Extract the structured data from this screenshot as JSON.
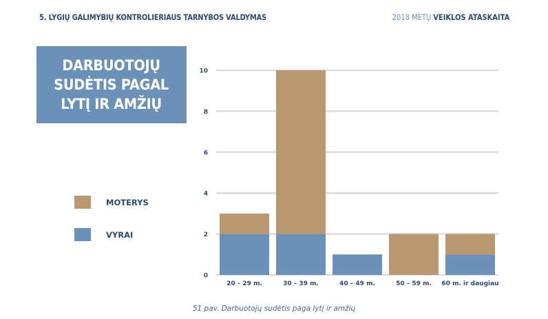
{
  "header": {
    "left": "5. LYGIŲ GALIMYBIŲ KONTROLIERIAUS TARNYBOS VALDYMAS",
    "right_year": "2018 METŲ",
    "right_rest": "VEIKLOS ATASKAITA"
  },
  "caption": "51 pav. Darbuotojų sudėtis paga lytį ir amžių",
  "colors": {
    "moterys": "#b99872",
    "vyrai": "#6c91b8",
    "title_bg": "#6c91b8",
    "grid": "#dcdcdc"
  },
  "chart_data": {
    "type": "bar",
    "stacked": true,
    "title": "DARBUOTOJŲ\nSUDĖTIS PAGAL\nLYTĮ IR AMŽIŲ",
    "categories": [
      "20 – 29 m.",
      "30 – 39 m.",
      "40 – 49 m.",
      "50 – 59 m.",
      "60 m. ir daugiau"
    ],
    "series": [
      {
        "name": "VYRAI",
        "values": [
          2,
          2,
          1,
          0,
          1
        ]
      },
      {
        "name": "MOTERYS",
        "values": [
          1,
          8,
          0,
          2,
          1
        ]
      }
    ],
    "yticks": [
      0,
      2,
      4,
      6,
      8,
      10
    ],
    "ylim": [
      0,
      10
    ],
    "grid": true,
    "legend": "left"
  }
}
